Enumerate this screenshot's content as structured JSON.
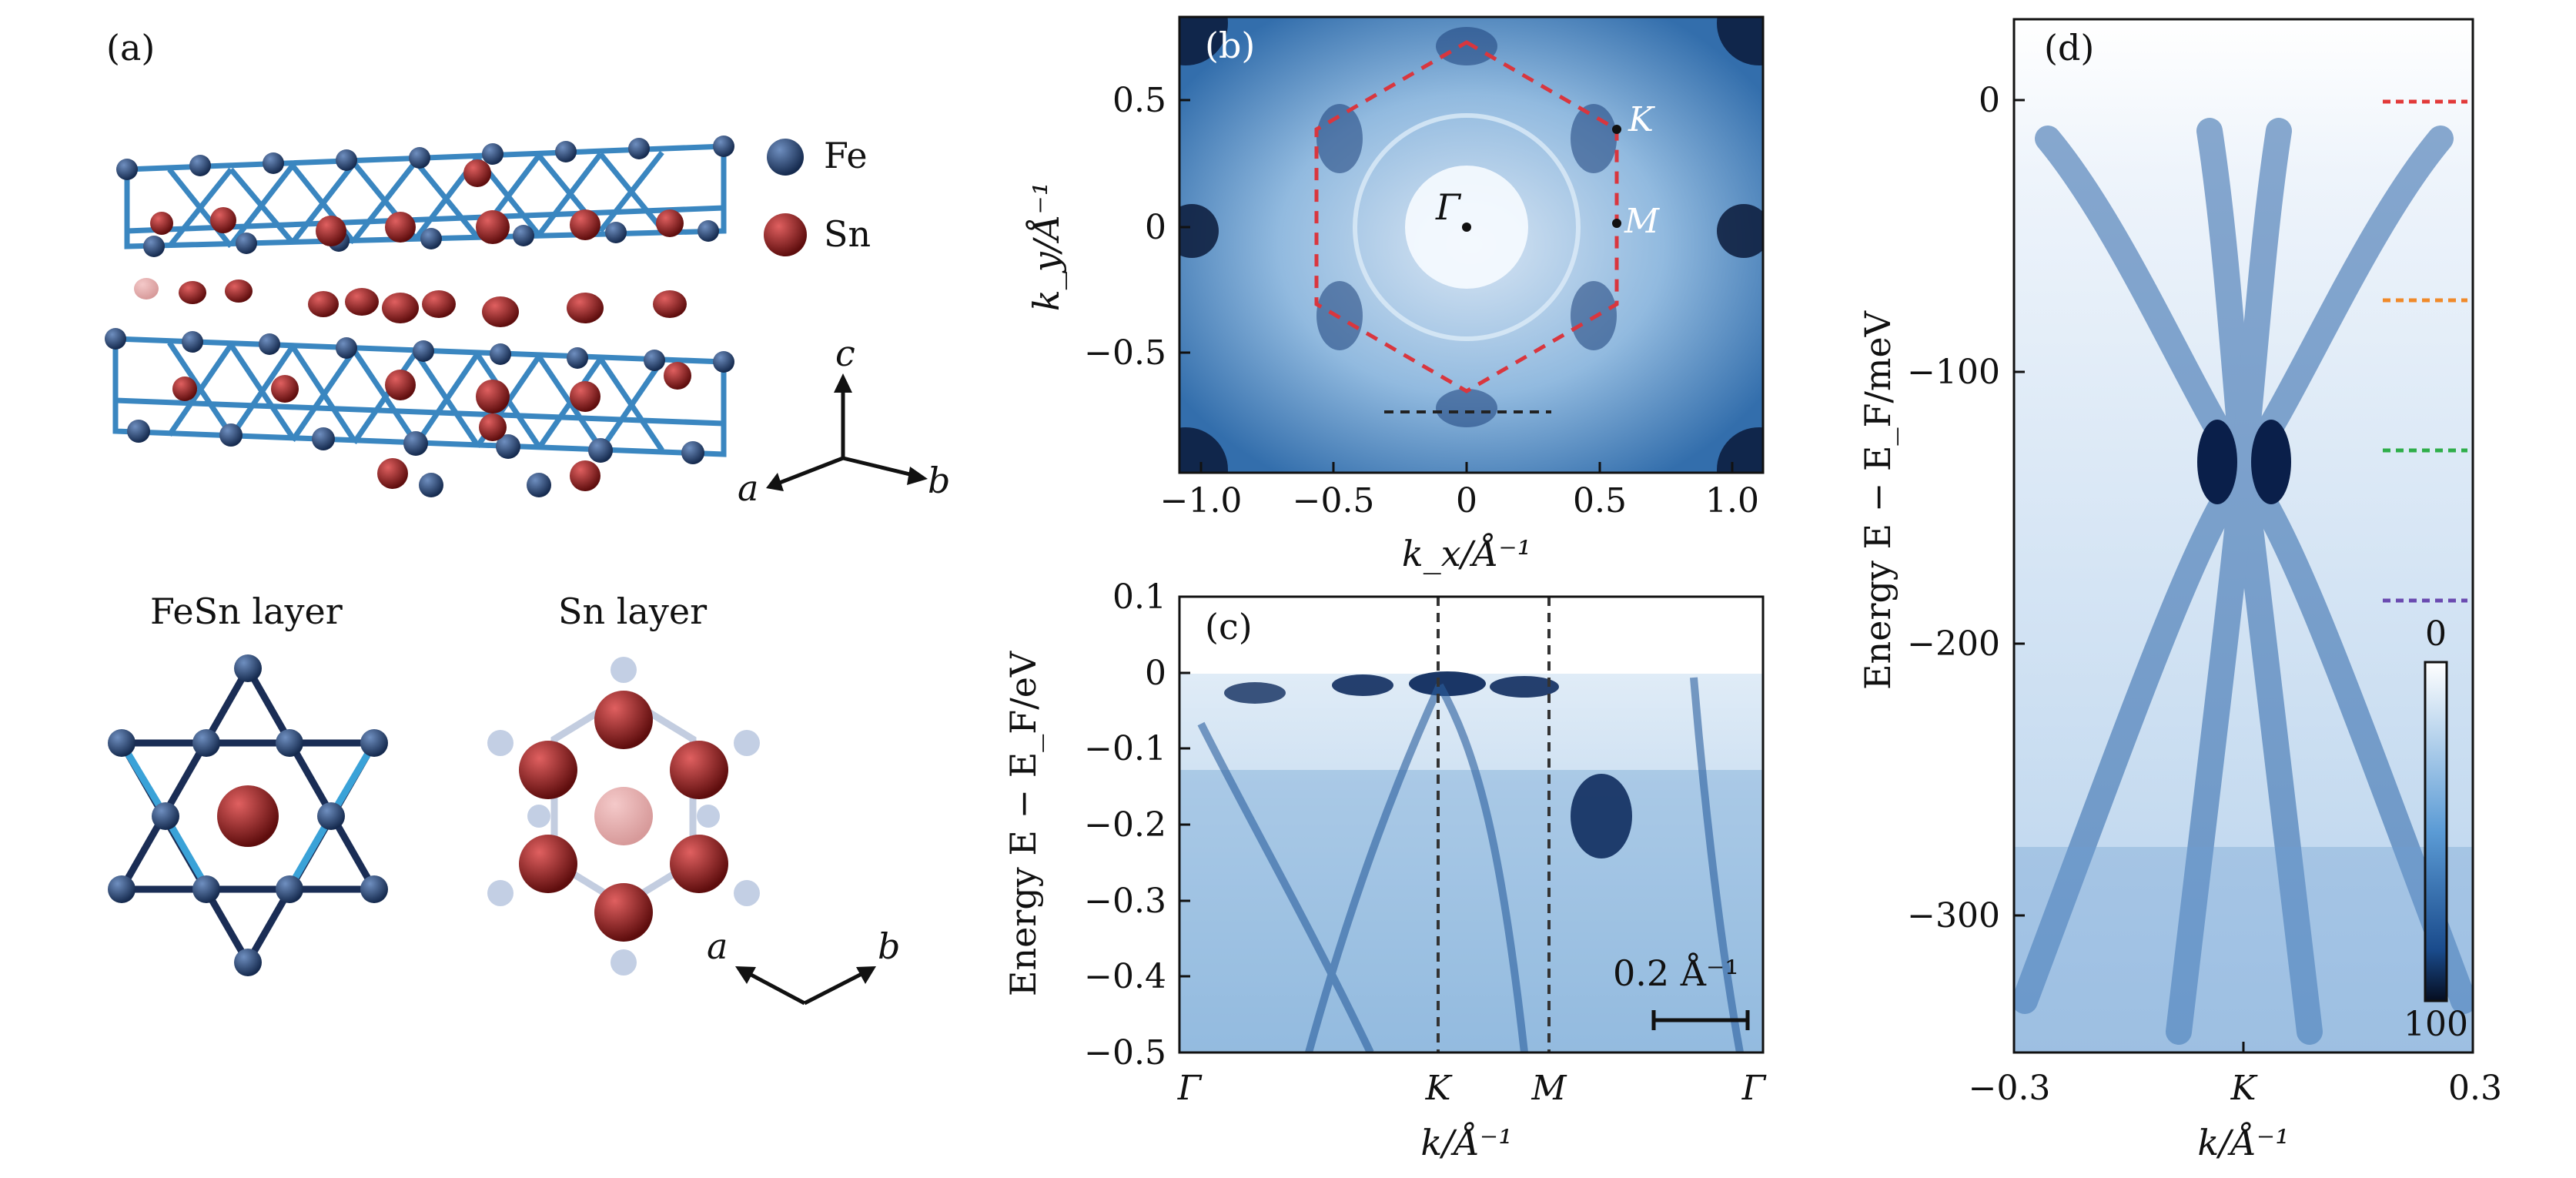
{
  "panel_a": {
    "label": "(a)",
    "legend": {
      "fe": "Fe",
      "sn": "Sn"
    },
    "axes_3d": {
      "a": "a",
      "b": "b",
      "c": "c"
    },
    "fesn_layer_title": "FeSn layer",
    "sn_layer_title": "Sn layer",
    "axes_2d": {
      "a": "a",
      "b": "b"
    },
    "colors": {
      "fe": "#1f3b66",
      "sn": "#8a1c1c",
      "bond_dark": "#1a2d55",
      "bond_light": "#3aa2d8"
    }
  },
  "panel_b": {
    "label": "(b)",
    "points": {
      "gamma": "Γ",
      "k": "K",
      "m": "M"
    },
    "xlabel": "k_x/Å⁻¹",
    "ylabel": "k_y/Å⁻¹",
    "xticks": [
      "−1.0",
      "−0.5",
      "0",
      "0.5",
      "1.0"
    ],
    "yticks": [
      "0.5",
      "0",
      "−0.5"
    ],
    "colors": {
      "bz": "#d9363e",
      "cut": "#222222"
    }
  },
  "panel_c": {
    "label": "(c)",
    "ylabel": "Energy E − E_F/eV",
    "yticks": [
      "0.1",
      "0",
      "−0.1",
      "−0.2",
      "−0.3",
      "−0.4",
      "−0.5"
    ],
    "xticks": [
      "Γ",
      "K",
      "M",
      "Γ"
    ],
    "xlabel": "k/Å⁻¹",
    "scalebar": "0.2 Å⁻¹"
  },
  "panel_d": {
    "label": "(d)",
    "ylabel": "Energy E − E_F/meV",
    "yticks": [
      "0",
      "−100",
      "−200",
      "−300"
    ],
    "xticks": [
      "−0.3",
      "K",
      "0.3"
    ],
    "xlabel": "k/Å⁻¹",
    "colorbar": {
      "min": "0",
      "max": "100"
    },
    "marker_colors": [
      "#e23a3a",
      "#f08a2a",
      "#2fae4a",
      "#6a4ab0"
    ]
  }
}
